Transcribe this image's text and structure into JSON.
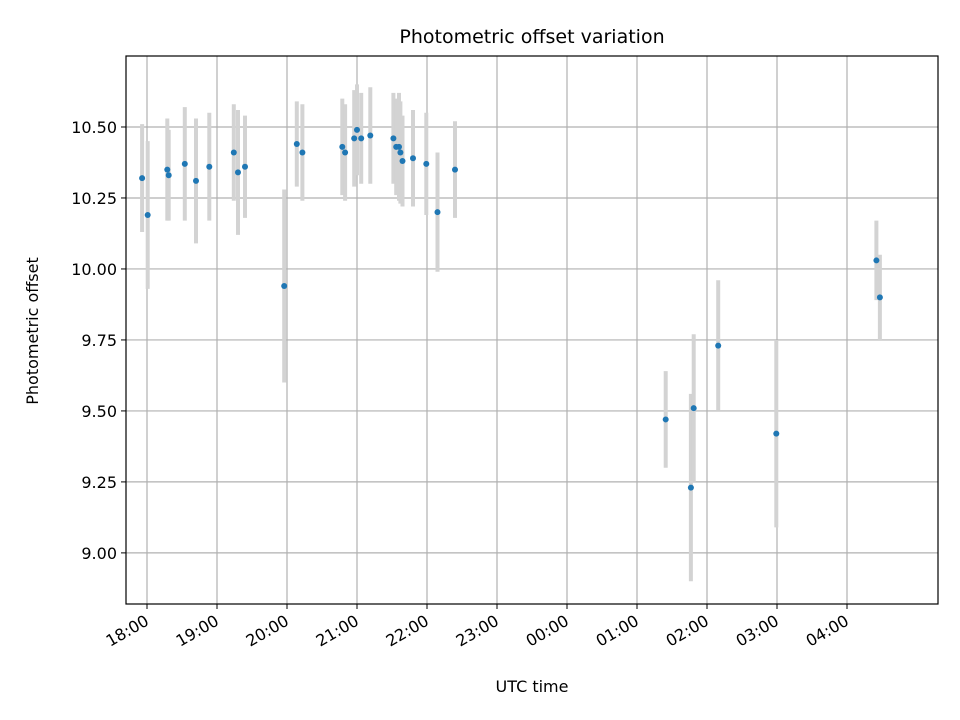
{
  "chart_data": {
    "type": "scatter",
    "title": "Photometric offset variation",
    "xlabel": "UTC time",
    "ylabel": "Photometric offset",
    "xlim_hours": [
      17.7,
      29.3
    ],
    "ylim": [
      8.82,
      10.75
    ],
    "grid": true,
    "colors": {
      "marker": "#1f77b4",
      "errorbar": "#d3d3d3",
      "grid": "#b0b0b0"
    },
    "x_ticks": [
      {
        "h": 18,
        "label": "18:00"
      },
      {
        "h": 19,
        "label": "19:00"
      },
      {
        "h": 20,
        "label": "20:00"
      },
      {
        "h": 21,
        "label": "21:00"
      },
      {
        "h": 22,
        "label": "22:00"
      },
      {
        "h": 23,
        "label": "23:00"
      },
      {
        "h": 24,
        "label": "00:00"
      },
      {
        "h": 25,
        "label": "01:00"
      },
      {
        "h": 26,
        "label": "02:00"
      },
      {
        "h": 27,
        "label": "03:00"
      },
      {
        "h": 28,
        "label": "04:00"
      }
    ],
    "y_ticks": [
      {
        "v": 9.0,
        "label": "9.00"
      },
      {
        "v": 9.25,
        "label": "9.25"
      },
      {
        "v": 9.5,
        "label": "9.50"
      },
      {
        "v": 9.75,
        "label": "9.75"
      },
      {
        "v": 10.0,
        "label": "10.00"
      },
      {
        "v": 10.25,
        "label": "10.25"
      },
      {
        "v": 10.5,
        "label": "10.50"
      }
    ],
    "points": [
      {
        "t": 17.93,
        "y": 10.32,
        "err": 0.19
      },
      {
        "t": 18.01,
        "y": 10.19,
        "err": 0.26
      },
      {
        "t": 18.29,
        "y": 10.35,
        "err": 0.18
      },
      {
        "t": 18.31,
        "y": 10.33,
        "err": 0.16
      },
      {
        "t": 18.54,
        "y": 10.37,
        "err": 0.2
      },
      {
        "t": 18.7,
        "y": 10.31,
        "err": 0.22
      },
      {
        "t": 18.89,
        "y": 10.36,
        "err": 0.19
      },
      {
        "t": 19.24,
        "y": 10.41,
        "err": 0.17
      },
      {
        "t": 19.3,
        "y": 10.34,
        "err": 0.22
      },
      {
        "t": 19.4,
        "y": 10.36,
        "err": 0.18
      },
      {
        "t": 19.96,
        "y": 9.94,
        "err": 0.34
      },
      {
        "t": 20.14,
        "y": 10.44,
        "err": 0.15
      },
      {
        "t": 20.22,
        "y": 10.41,
        "err": 0.17
      },
      {
        "t": 20.79,
        "y": 10.43,
        "err": 0.17
      },
      {
        "t": 20.83,
        "y": 10.41,
        "err": 0.17
      },
      {
        "t": 20.96,
        "y": 10.46,
        "err": 0.17
      },
      {
        "t": 21.0,
        "y": 10.49,
        "err": 0.16
      },
      {
        "t": 21.06,
        "y": 10.46,
        "err": 0.16
      },
      {
        "t": 21.19,
        "y": 10.47,
        "err": 0.17
      },
      {
        "t": 21.52,
        "y": 10.46,
        "err": 0.16
      },
      {
        "t": 21.56,
        "y": 10.43,
        "err": 0.17
      },
      {
        "t": 21.6,
        "y": 10.43,
        "err": 0.19
      },
      {
        "t": 21.62,
        "y": 10.41,
        "err": 0.18
      },
      {
        "t": 21.65,
        "y": 10.38,
        "err": 0.16
      },
      {
        "t": 21.8,
        "y": 10.39,
        "err": 0.17
      },
      {
        "t": 21.99,
        "y": 10.37,
        "err": 0.18
      },
      {
        "t": 22.15,
        "y": 10.2,
        "err": 0.21
      },
      {
        "t": 22.4,
        "y": 10.35,
        "err": 0.17
      },
      {
        "t": 25.41,
        "y": 9.47,
        "err": 0.17
      },
      {
        "t": 25.77,
        "y": 9.23,
        "err": 0.33
      },
      {
        "t": 25.81,
        "y": 9.51,
        "err": 0.26
      },
      {
        "t": 26.16,
        "y": 9.73,
        "err": 0.23
      },
      {
        "t": 26.99,
        "y": 9.42,
        "err": 0.33
      },
      {
        "t": 28.42,
        "y": 10.03,
        "err": 0.14
      },
      {
        "t": 28.47,
        "y": 9.9,
        "err": 0.15
      }
    ]
  }
}
